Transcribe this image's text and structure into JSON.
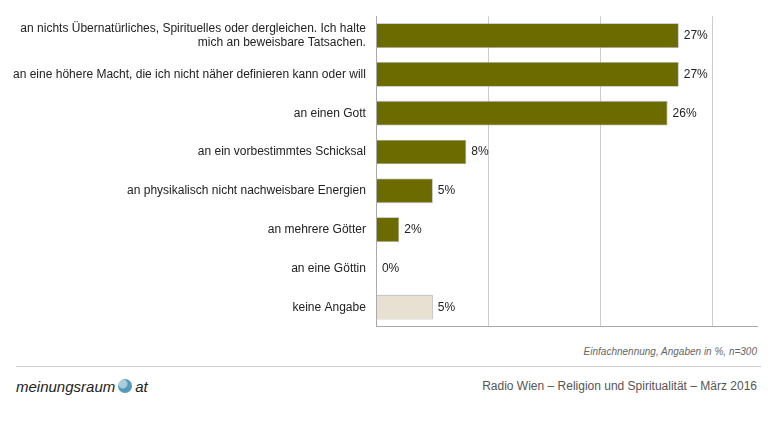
{
  "chart_data": {
    "type": "bar",
    "orientation": "horizontal",
    "categories": [
      "an nichts Übernatürliches, Spirituelles oder dergleichen. Ich halte\nmich an beweisbare Tatsachen.",
      "an eine höhere Macht, die ich nicht näher definieren kann oder will",
      "an einen Gott",
      "an ein vorbestimmtes Schicksal",
      "an physikalisch nicht nachweisbare Energien",
      "an mehrere Götter",
      "an eine Göttin",
      "keine Angabe"
    ],
    "values": [
      27,
      27,
      26,
      8,
      5,
      2,
      0,
      5
    ],
    "value_labels": [
      "27%",
      "27%",
      "26%",
      "8%",
      "5%",
      "2%",
      "0%",
      "5%"
    ],
    "data_labels": true,
    "colors": [
      "#6b6b00",
      "#6b6b00",
      "#6b6b00",
      "#6b6b00",
      "#6b6b00",
      "#6b6b00",
      "#6b6b00",
      "#e8e0d0"
    ],
    "xlim": [
      0,
      34
    ],
    "xticks": [
      10,
      20,
      30
    ],
    "grid": true,
    "tick_labels": "y",
    "annotations": [
      "Einfachnennung, Angaben in %, n=300",
      "Radio Wien – Religion und Spiritualität – März 2016",
      "meinungsraum",
      "at"
    ]
  }
}
